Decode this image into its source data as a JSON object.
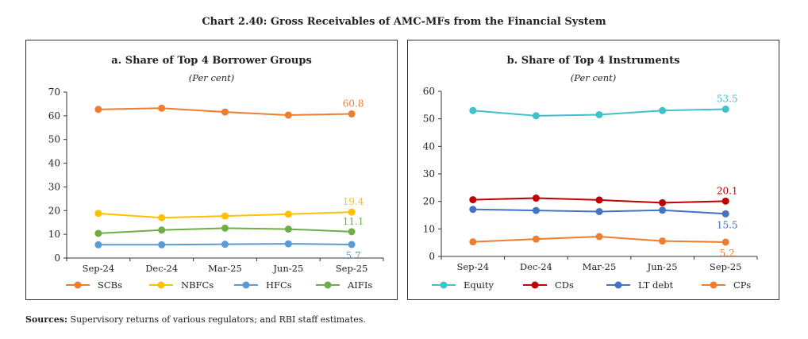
{
  "title": "Chart 2.40: Gross Receivables of AMC-MFs from the Financial System",
  "sources": {
    "label": "Sources:",
    "text": " Supervisory returns of various regulators; and RBI staff estimates."
  },
  "chart_data": [
    {
      "type": "line",
      "title": "a. Share of Top 4 Borrower Groups",
      "subtitle": "(Per cent)",
      "categories": [
        "Sep-24",
        "Dec-24",
        "Mar-25",
        "Jun-25",
        "Sep-25"
      ],
      "ylim": [
        0,
        70
      ],
      "yticks": [
        0,
        10,
        20,
        30,
        40,
        50,
        60,
        70
      ],
      "grid": false,
      "legend": "bottom",
      "series": [
        {
          "name": "SCBs",
          "color": "#ED7D31",
          "values": [
            62.7,
            63.2,
            61.6,
            60.3,
            60.8
          ],
          "end_label": "60.8"
        },
        {
          "name": "NBFCs",
          "color": "#FFC000",
          "values": [
            18.8,
            17.0,
            17.7,
            18.5,
            19.4
          ],
          "end_label": "19.4"
        },
        {
          "name": "HFCs",
          "color": "#5B9BD5",
          "values": [
            5.6,
            5.6,
            5.8,
            6.0,
            5.7
          ],
          "end_label": "5.7"
        },
        {
          "name": "AIFIs",
          "color": "#70AD47",
          "values": [
            10.4,
            11.8,
            12.6,
            12.2,
            11.1
          ],
          "end_label": "11.1"
        }
      ]
    },
    {
      "type": "line",
      "title": "b. Share of Top 4 Instruments",
      "subtitle": "(Per cent)",
      "categories": [
        "Sep-24",
        "Dec-24",
        "Mar-25",
        "Jun-25",
        "Sep-25"
      ],
      "ylim": [
        0,
        60
      ],
      "yticks": [
        0,
        10,
        20,
        30,
        40,
        50,
        60
      ],
      "grid": false,
      "legend": "bottom",
      "series": [
        {
          "name": "Equity",
          "color": "#3FC1C9",
          "values": [
            53.0,
            51.1,
            51.5,
            53.0,
            53.5
          ],
          "end_label": "53.5"
        },
        {
          "name": "CDs",
          "color": "#C00000",
          "values": [
            20.6,
            21.2,
            20.5,
            19.5,
            20.1
          ],
          "end_label": "20.1"
        },
        {
          "name": "LT debt",
          "color": "#4472C4",
          "values": [
            17.1,
            16.7,
            16.3,
            16.8,
            15.5
          ],
          "end_label": "15.5"
        },
        {
          "name": "CPs",
          "color": "#ED7D31",
          "values": [
            5.3,
            6.3,
            7.2,
            5.6,
            5.2
          ],
          "end_label": "5.2"
        }
      ]
    }
  ]
}
